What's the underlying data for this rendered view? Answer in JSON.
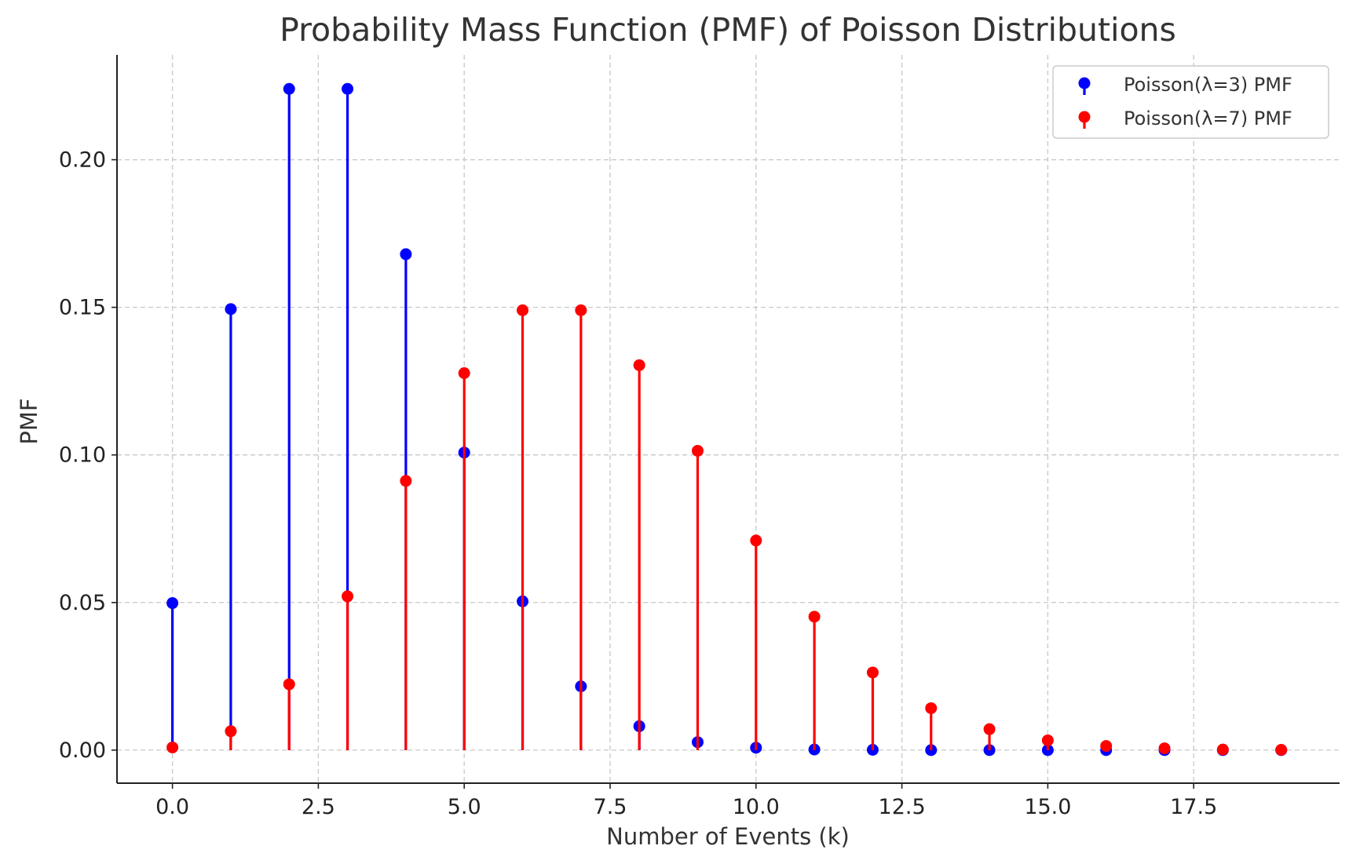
{
  "chart_data": {
    "type": "stem",
    "title": "Probability Mass Function (PMF) of Poisson Distributions",
    "xlabel": "Number of Events (k)",
    "ylabel": "PMF",
    "xlim": [
      -0.95,
      20.0
    ],
    "ylim": [
      -0.0112,
      0.2355
    ],
    "xticks": [
      0.0,
      2.5,
      5.0,
      7.5,
      10.0,
      12.5,
      15.0,
      17.5
    ],
    "xtick_labels": [
      "0.0",
      "2.5",
      "5.0",
      "7.5",
      "10.0",
      "12.5",
      "15.0",
      "17.5"
    ],
    "yticks": [
      0.0,
      0.05,
      0.1,
      0.15,
      0.2
    ],
    "ytick_labels": [
      "0.00",
      "0.05",
      "0.10",
      "0.15",
      "0.20"
    ],
    "grid": true,
    "legend_position": "top-right",
    "x": [
      0,
      1,
      2,
      3,
      4,
      5,
      6,
      7,
      8,
      9,
      10,
      11,
      12,
      13,
      14,
      15,
      16,
      17,
      18,
      19
    ],
    "series": [
      {
        "name": "Poisson(λ=3) PMF",
        "color": "#0000ff",
        "values": [
          0.0498,
          0.1494,
          0.224,
          0.224,
          0.168,
          0.1008,
          0.0504,
          0.0216,
          0.0081,
          0.0027,
          0.0008,
          0.0002,
          0.0001,
          0.0,
          0.0,
          0.0,
          0.0,
          0.0,
          0.0,
          0.0
        ]
      },
      {
        "name": "Poisson(λ=7) PMF",
        "color": "#ff0000",
        "values": [
          0.0009,
          0.0064,
          0.0223,
          0.0521,
          0.0912,
          0.1277,
          0.149,
          0.149,
          0.1304,
          0.1014,
          0.071,
          0.0452,
          0.0263,
          0.0142,
          0.0071,
          0.0033,
          0.0014,
          0.0006,
          0.0002,
          0.0001
        ]
      }
    ]
  }
}
